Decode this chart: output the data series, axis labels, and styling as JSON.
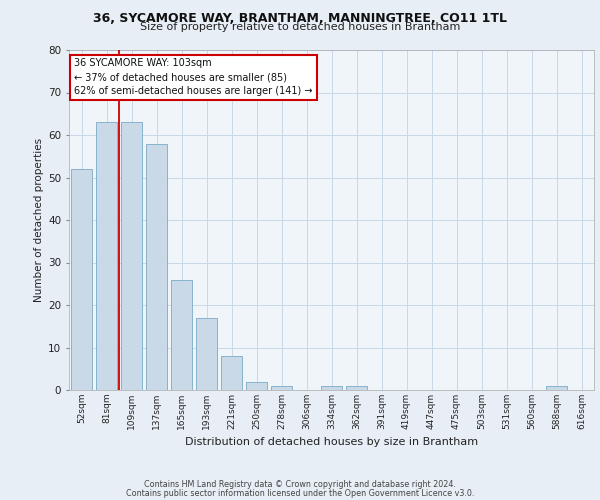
{
  "title1": "36, SYCAMORE WAY, BRANTHAM, MANNINGTREE, CO11 1TL",
  "title2": "Size of property relative to detached houses in Brantham",
  "xlabel": "Distribution of detached houses by size in Brantham",
  "ylabel": "Number of detached properties",
  "categories": [
    "52sqm",
    "81sqm",
    "109sqm",
    "137sqm",
    "165sqm",
    "193sqm",
    "221sqm",
    "250sqm",
    "278sqm",
    "306sqm",
    "334sqm",
    "362sqm",
    "391sqm",
    "419sqm",
    "447sqm",
    "475sqm",
    "503sqm",
    "531sqm",
    "560sqm",
    "588sqm",
    "616sqm"
  ],
  "values": [
    52,
    63,
    63,
    58,
    26,
    17,
    8,
    2,
    1,
    0,
    1,
    1,
    0,
    0,
    0,
    0,
    0,
    0,
    0,
    1,
    0
  ],
  "bar_color": "#c9d9e8",
  "bar_edge_color": "#7aaac8",
  "vline_color": "#cc0000",
  "annotation_line1": "36 SYCAMORE WAY: 103sqm",
  "annotation_line2": "← 37% of detached houses are smaller (85)",
  "annotation_line3": "62% of semi-detached houses are larger (141) →",
  "annotation_box_color": "#ffffff",
  "annotation_box_edge": "#cc0000",
  "grid_color": "#c8d8e8",
  "background_color": "#e8eef5",
  "plot_background": "#f0f5fa",
  "ylim": [
    0,
    80
  ],
  "yticks": [
    0,
    10,
    20,
    30,
    40,
    50,
    60,
    70,
    80
  ],
  "footer_line1": "Contains HM Land Registry data © Crown copyright and database right 2024.",
  "footer_line2": "Contains public sector information licensed under the Open Government Licence v3.0."
}
